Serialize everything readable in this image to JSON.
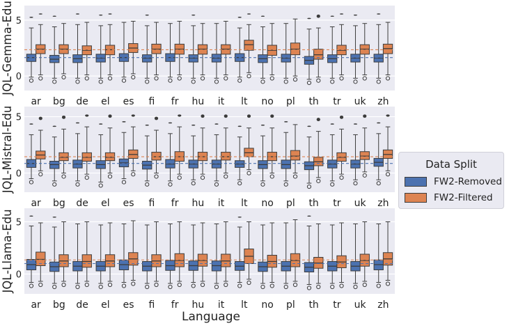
{
  "chart_data": {
    "type": "box",
    "xlabel": "Language",
    "categories": [
      "ar",
      "bg",
      "de",
      "el",
      "es",
      "fi",
      "fr",
      "hu",
      "it",
      "lt",
      "no",
      "pl",
      "th",
      "tr",
      "uk",
      "zh"
    ],
    "legend": {
      "title": "Data Split",
      "placement": "right",
      "entries": [
        {
          "name": "FW2-Removed",
          "color": "#4c72b0"
        },
        {
          "name": "FW2-Filtered",
          "color": "#dd8452"
        }
      ]
    },
    "grid": true,
    "panels": [
      {
        "ylabel": "JQL-Gemma-Edu",
        "ylim": [
          -1.3,
          6.3
        ],
        "yticks": [
          0,
          5
        ],
        "mean_lines": {
          "FW2-Removed": 1.65,
          "FW2-Filtered": 2.35
        },
        "series": [
          {
            "name": "FW2-Removed",
            "boxes": [
              [
                -0.1,
                1.3,
                1.65,
                1.95,
                4.3
              ],
              [
                -0.2,
                1.2,
                1.5,
                1.85,
                4.4
              ],
              [
                -0.2,
                1.2,
                1.55,
                1.9,
                4.6
              ],
              [
                -0.2,
                1.25,
                1.6,
                1.95,
                4.5
              ],
              [
                -0.1,
                1.3,
                1.65,
                2.0,
                4.8
              ],
              [
                -0.2,
                1.25,
                1.6,
                1.9,
                4.5
              ],
              [
                -0.1,
                1.3,
                1.65,
                2.0,
                4.7
              ],
              [
                -0.2,
                1.25,
                1.6,
                1.9,
                4.5
              ],
              [
                -0.2,
                1.25,
                1.6,
                1.95,
                4.7
              ],
              [
                -0.1,
                1.3,
                1.65,
                2.0,
                4.3
              ],
              [
                -0.2,
                1.2,
                1.55,
                1.9,
                4.4
              ],
              [
                -0.2,
                1.25,
                1.6,
                1.95,
                4.7
              ],
              [
                -0.3,
                1.05,
                1.4,
                1.75,
                4.2
              ],
              [
                -0.2,
                1.2,
                1.55,
                1.9,
                4.4
              ],
              [
                -0.2,
                1.25,
                1.6,
                1.95,
                4.5
              ],
              [
                -0.2,
                1.25,
                1.6,
                1.95,
                4.6
              ]
            ]
          },
          {
            "name": "FW2-Filtered",
            "boxes": [
              [
                0.1,
                2.0,
                2.4,
                2.8,
                4.6
              ],
              [
                0.2,
                2.0,
                2.4,
                2.8,
                4.7
              ],
              [
                0.1,
                1.9,
                2.3,
                2.7,
                4.8
              ],
              [
                0.1,
                1.9,
                2.35,
                2.75,
                4.6
              ],
              [
                0.2,
                2.1,
                2.5,
                2.9,
                4.9
              ],
              [
                0.1,
                2.0,
                2.4,
                2.85,
                4.8
              ],
              [
                0.1,
                1.95,
                2.4,
                2.85,
                4.9
              ],
              [
                0.1,
                1.95,
                2.4,
                2.8,
                4.7
              ],
              [
                0.1,
                1.95,
                2.4,
                2.8,
                4.9
              ],
              [
                0.3,
                2.3,
                2.8,
                3.2,
                4.6
              ],
              [
                0.1,
                1.85,
                2.3,
                2.75,
                4.7
              ],
              [
                0.0,
                1.9,
                2.4,
                2.95,
                5.1
              ],
              [
                -0.1,
                1.5,
                1.9,
                2.4,
                4.3
              ],
              [
                0.1,
                1.9,
                2.3,
                2.75,
                4.6
              ],
              [
                0.1,
                1.95,
                2.4,
                2.8,
                4.7
              ],
              [
                0.1,
                2.0,
                2.45,
                2.85,
                4.8
              ]
            ]
          }
        ]
      },
      {
        "ylabel": "JQL-Mistral-Edu",
        "ylim": [
          -1.7,
          5.9
        ],
        "yticks": [
          0,
          5
        ],
        "mean_lines": {
          "FW2-Removed": 0.85,
          "FW2-Filtered": 1.45
        },
        "series": [
          {
            "name": "FW2-Removed",
            "boxes": [
              [
                -0.5,
                0.5,
                0.85,
                1.2,
                3.4
              ],
              [
                -0.7,
                0.4,
                0.75,
                1.05,
                3.2
              ],
              [
                -0.7,
                0.45,
                0.8,
                1.15,
                3.5
              ],
              [
                -0.8,
                0.4,
                0.75,
                1.1,
                3.4
              ],
              [
                -0.5,
                0.55,
                0.9,
                1.25,
                3.6
              ],
              [
                -0.7,
                0.35,
                0.7,
                1.05,
                3.3
              ],
              [
                -0.7,
                0.45,
                0.8,
                1.2,
                3.5
              ],
              [
                -0.6,
                0.45,
                0.8,
                1.15,
                3.3
              ],
              [
                -0.7,
                0.45,
                0.8,
                1.15,
                3.4
              ],
              [
                -0.6,
                0.5,
                0.8,
                1.1,
                3.2
              ],
              [
                -0.7,
                0.4,
                0.75,
                1.1,
                3.3
              ],
              [
                -0.7,
                0.4,
                0.75,
                1.15,
                3.6
              ],
              [
                -0.9,
                0.3,
                0.65,
                1.0,
                3.2
              ],
              [
                -0.7,
                0.45,
                0.8,
                1.15,
                3.4
              ],
              [
                -0.6,
                0.45,
                0.8,
                1.15,
                3.4
              ],
              [
                -0.6,
                0.6,
                0.95,
                1.3,
                3.5
              ]
            ]
          },
          {
            "name": "FW2-Filtered",
            "boxes": [
              [
                0.2,
                1.25,
                1.6,
                1.95,
                3.8
              ],
              [
                0.0,
                1.1,
                1.4,
                1.8,
                3.9
              ],
              [
                -0.1,
                1.05,
                1.4,
                1.8,
                4.1
              ],
              [
                0.0,
                1.1,
                1.4,
                1.8,
                4.0
              ],
              [
                0.2,
                1.3,
                1.65,
                2.05,
                4.1
              ],
              [
                0.0,
                1.15,
                1.45,
                1.85,
                3.8
              ],
              [
                -0.1,
                1.05,
                1.45,
                1.9,
                4.1
              ],
              [
                -0.1,
                1.1,
                1.45,
                1.85,
                4.0
              ],
              [
                0.0,
                1.15,
                1.45,
                1.85,
                4.0
              ],
              [
                0.3,
                1.45,
                1.8,
                2.2,
                4.0
              ],
              [
                0.0,
                1.1,
                1.45,
                1.85,
                4.0
              ],
              [
                0.0,
                1.15,
                1.5,
                2.0,
                4.3
              ],
              [
                -0.4,
                0.65,
                1.0,
                1.4,
                3.7
              ],
              [
                -0.1,
                1.05,
                1.4,
                1.8,
                3.9
              ],
              [
                0.1,
                1.2,
                1.5,
                1.9,
                4.0
              ],
              [
                0.2,
                1.3,
                1.65,
                2.05,
                4.1
              ]
            ]
          }
        ]
      },
      {
        "ylabel": "JQL-Llama-Edu",
        "ylim": [
          -1.9,
          6.3
        ],
        "yticks": [
          0,
          5
        ],
        "mean_lines": {
          "FW2-Removed": 1.0,
          "FW2-Filtered": 1.35
        },
        "series": [
          {
            "name": "FW2-Removed",
            "boxes": [
              [
                -0.8,
                0.4,
                0.9,
                1.4,
                4.6
              ],
              [
                -0.9,
                0.25,
                0.7,
                1.15,
                4.5
              ],
              [
                -0.9,
                0.3,
                0.75,
                1.2,
                4.8
              ],
              [
                -0.9,
                0.3,
                0.75,
                1.2,
                4.7
              ],
              [
                -0.8,
                0.4,
                0.9,
                1.35,
                4.8
              ],
              [
                -0.9,
                0.3,
                0.75,
                1.2,
                4.7
              ],
              [
                -0.9,
                0.35,
                0.8,
                1.3,
                4.8
              ],
              [
                -0.8,
                0.35,
                0.8,
                1.25,
                4.7
              ],
              [
                -0.9,
                0.3,
                0.8,
                1.25,
                4.8
              ],
              [
                -0.8,
                0.35,
                0.75,
                1.2,
                4.5
              ],
              [
                -0.9,
                0.25,
                0.7,
                1.15,
                4.7
              ],
              [
                -0.9,
                0.3,
                0.75,
                1.2,
                4.9
              ],
              [
                -1.0,
                0.2,
                0.65,
                1.1,
                4.6
              ],
              [
                -0.9,
                0.3,
                0.75,
                1.2,
                4.7
              ],
              [
                -0.9,
                0.3,
                0.75,
                1.2,
                4.8
              ],
              [
                -0.8,
                0.4,
                0.9,
                1.35,
                4.8
              ]
            ]
          },
          {
            "name": "FW2-Filtered",
            "boxes": [
              [
                -0.7,
                0.8,
                1.4,
                2.1,
                4.9
              ],
              [
                -0.7,
                0.7,
                1.25,
                1.85,
                5.0
              ],
              [
                -0.7,
                0.65,
                1.2,
                1.85,
                5.0
              ],
              [
                -0.7,
                0.7,
                1.25,
                1.85,
                4.9
              ],
              [
                -0.6,
                0.85,
                1.45,
                2.05,
                5.1
              ],
              [
                -0.7,
                0.7,
                1.25,
                1.85,
                5.0
              ],
              [
                -0.7,
                0.7,
                1.3,
                1.95,
                5.0
              ],
              [
                -0.7,
                0.75,
                1.3,
                1.9,
                4.9
              ],
              [
                -0.7,
                0.7,
                1.25,
                1.9,
                5.0
              ],
              [
                -0.5,
                1.0,
                1.7,
                2.4,
                5.0
              ],
              [
                -0.8,
                0.65,
                1.2,
                1.8,
                4.9
              ],
              [
                -0.7,
                0.7,
                1.3,
                1.95,
                5.2
              ],
              [
                -0.9,
                0.55,
                1.05,
                1.6,
                4.8
              ],
              [
                -0.8,
                0.6,
                1.15,
                1.75,
                4.9
              ],
              [
                -0.7,
                0.75,
                1.3,
                1.9,
                5.0
              ],
              [
                -0.6,
                0.85,
                1.45,
                2.05,
                5.0
              ]
            ]
          }
        ]
      }
    ]
  }
}
